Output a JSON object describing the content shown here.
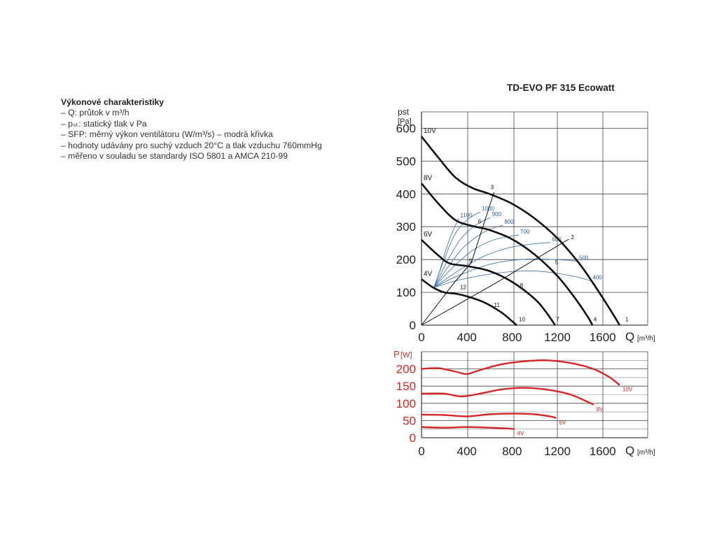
{
  "title": "TD-EVO PF 315 Ecowatt",
  "specs": {
    "heading": "Výkonové charakteristiky",
    "lines": [
      "– Q: průtok v m³/h",
      "– pₛₜ: statický tlak v Pa",
      "– SFP: měrný výkon ventilátoru (W/m³/s) – modrá křivka",
      "– hodnoty udávány pro suchý vzduch 20°C a tlak vzduchu 760mmHg",
      "– měřeno v souladu se standardy ISO 5801 a AMCA 210-99"
    ]
  },
  "chart_data": [
    {
      "type": "line",
      "ylabel": "pst",
      "yunit": "[Pa]",
      "xlabel": "Q",
      "xunit": "[m³/h]",
      "xlim": [
        0,
        1900
      ],
      "ylim": [
        0,
        650
      ],
      "x_ticks": [
        "0",
        "400",
        "800",
        "1200",
        "1600"
      ],
      "y_ticks": [
        "0",
        "100",
        "200",
        "300",
        "400",
        "500",
        "600"
      ],
      "grid": true,
      "colors": {
        "fan_curve": "#111111",
        "sfp_curve": "#4a78b6",
        "system_line": "#111111"
      },
      "series": [
        {
          "name": "10V",
          "x": [
            0,
            150,
            300,
            450,
            600,
            800,
            1000,
            1200,
            1400,
            1550,
            1680,
            1750
          ],
          "y": [
            575,
            510,
            450,
            418,
            400,
            370,
            325,
            265,
            185,
            110,
            40,
            0
          ]
        },
        {
          "name": "8V",
          "x": [
            0,
            150,
            300,
            450,
            600,
            800,
            1000,
            1200,
            1350,
            1470,
            1510
          ],
          "y": [
            432,
            370,
            320,
            302,
            290,
            262,
            215,
            150,
            85,
            25,
            0
          ]
        },
        {
          "name": "6V",
          "x": [
            0,
            150,
            250,
            400,
            600,
            800,
            1000,
            1100,
            1180
          ],
          "y": [
            260,
            212,
            188,
            180,
            165,
            132,
            80,
            40,
            0
          ]
        },
        {
          "name": "4V",
          "x": [
            0,
            100,
            200,
            300,
            400,
            550,
            700,
            800,
            840
          ],
          "y": [
            140,
            115,
            100,
            96,
            88,
            70,
            40,
            12,
            0
          ]
        }
      ],
      "sfp_curves": [
        {
          "label": "1100",
          "x": [
            110,
            160,
            220,
            280,
            330
          ],
          "y": [
            115,
            165,
            235,
            290,
            325
          ]
        },
        {
          "label": "1000",
          "x": [
            110,
            200,
            300,
            420,
            520
          ],
          "y": [
            115,
            200,
            280,
            325,
            345
          ]
        },
        {
          "label": "900",
          "x": [
            110,
            220,
            340,
            480,
            610
          ],
          "y": [
            115,
            190,
            260,
            305,
            328
          ]
        },
        {
          "label": "800",
          "x": [
            110,
            240,
            380,
            560,
            720
          ],
          "y": [
            115,
            180,
            240,
            285,
            305
          ]
        },
        {
          "label": "700",
          "x": [
            110,
            260,
            440,
            640,
            860
          ],
          "y": [
            115,
            170,
            225,
            260,
            275
          ]
        },
        {
          "label": "600",
          "x": [
            110,
            300,
            520,
            760,
            1000,
            1140
          ],
          "y": [
            115,
            160,
            205,
            235,
            248,
            252
          ]
        },
        {
          "label": "500",
          "x": [
            110,
            320,
            600,
            880,
            1180,
            1380
          ],
          "y": [
            115,
            150,
            185,
            200,
            200,
            195
          ]
        },
        {
          "label": "400",
          "x": [
            110,
            360,
            700,
            1000,
            1300,
            1500
          ],
          "y": [
            115,
            140,
            160,
            165,
            152,
            135
          ]
        }
      ],
      "system_lines": [
        {
          "x": [
            0,
            290,
            440,
            640
          ],
          "y": [
            0,
            130,
            190,
            405
          ]
        },
        {
          "x": [
            0,
            640,
            1300
          ],
          "y": [
            0,
            125,
            262
          ]
        }
      ],
      "point_labels": [
        {
          "text": "1",
          "x": 1800,
          "y": 12
        },
        {
          "text": "2",
          "x": 1320,
          "y": 262
        },
        {
          "text": "3",
          "x": 610,
          "y": 415
        },
        {
          "text": "4",
          "x": 1520,
          "y": 12
        },
        {
          "text": "5",
          "x": 1180,
          "y": 185
        },
        {
          "text": "6",
          "x": 500,
          "y": 310
        },
        {
          "text": "7",
          "x": 1190,
          "y": 12
        },
        {
          "text": "8",
          "x": 870,
          "y": 115
        },
        {
          "text": "9",
          "x": 420,
          "y": 190
        },
        {
          "text": "10",
          "x": 860,
          "y": 12
        },
        {
          "text": "11",
          "x": 640,
          "y": 55
        },
        {
          "text": "12",
          "x": 340,
          "y": 110
        }
      ]
    },
    {
      "type": "line",
      "ylabel": "P",
      "yunit": "[W]",
      "xlabel": "Q",
      "xunit": "[m³/h]",
      "xlim": [
        0,
        1900
      ],
      "ylim": [
        0,
        250
      ],
      "x_ticks": [
        "0",
        "400",
        "800",
        "1200",
        "1600"
      ],
      "y_ticks": [
        "0",
        "50",
        "100",
        "150",
        "200"
      ],
      "grid": true,
      "colors": {
        "curve": "#d42727",
        "axis_text": "#d42727"
      },
      "series": [
        {
          "name": "10V",
          "x": [
            0,
            150,
            300,
            400,
            500,
            700,
            900,
            1100,
            1300,
            1500,
            1650,
            1750
          ],
          "y": [
            200,
            202,
            192,
            185,
            195,
            213,
            222,
            225,
            218,
            202,
            178,
            153
          ]
        },
        {
          "name": "8V",
          "x": [
            0,
            200,
            350,
            500,
            700,
            900,
            1100,
            1300,
            1450,
            1520
          ],
          "y": [
            128,
            128,
            120,
            127,
            140,
            145,
            140,
            127,
            107,
            96
          ]
        },
        {
          "name": "6V",
          "x": [
            0,
            200,
            400,
            600,
            800,
            1000,
            1150,
            1190
          ],
          "y": [
            67,
            66,
            62,
            68,
            70,
            68,
            61,
            57
          ]
        },
        {
          "name": "4V",
          "x": [
            0,
            200,
            400,
            600,
            750,
            820
          ],
          "y": [
            31,
            29,
            31,
            29,
            27,
            25
          ]
        }
      ]
    }
  ]
}
